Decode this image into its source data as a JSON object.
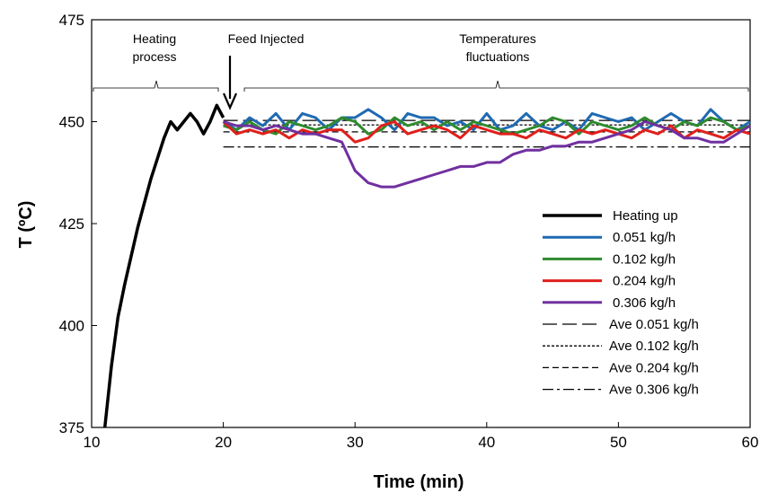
{
  "chart_data": {
    "type": "line",
    "xlabel": "Time (min)",
    "ylabel": "T (ºC)",
    "xlim": [
      10,
      60
    ],
    "ylim": [
      375,
      475
    ],
    "x_ticks": [
      "10",
      "20",
      "30",
      "40",
      "50",
      "60"
    ],
    "y_ticks": [
      "375",
      "400",
      "425",
      "450",
      "475"
    ],
    "grid": false,
    "legend_position": "bottom-right",
    "annotations": [
      {
        "text_lines": [
          "Heating",
          "process"
        ],
        "x_range": [
          10,
          20
        ]
      },
      {
        "text_lines": [
          "Feed Injected"
        ],
        "x": 20.5
      },
      {
        "text_lines": [
          "Temperatures",
          "fluctuations"
        ],
        "x_range": [
          21.5,
          60
        ]
      }
    ],
    "series": [
      {
        "name": "Heating up",
        "color": "#000000",
        "style": "solid",
        "width": 3.5,
        "x": [
          11,
          11.5,
          12,
          12.5,
          13,
          13.5,
          14,
          14.5,
          15,
          15.5,
          16,
          16.5,
          17,
          17.5,
          18,
          18.5,
          19,
          19.5,
          20
        ],
        "y": [
          375,
          390,
          402,
          410,
          417,
          424,
          430,
          436,
          441,
          446,
          450,
          448,
          450,
          452,
          450,
          447,
          450,
          454,
          451
        ]
      },
      {
        "name": "0.051 kg/h",
        "color": "#1f6ab2",
        "style": "solid",
        "width": 3,
        "x": [
          20,
          21,
          22,
          23,
          24,
          25,
          26,
          27,
          28,
          29,
          30,
          31,
          32,
          33,
          34,
          35,
          36,
          37,
          38,
          39,
          40,
          41,
          42,
          43,
          44,
          45,
          46,
          47,
          48,
          49,
          50,
          51,
          52,
          53,
          54,
          55,
          56,
          57,
          58,
          59,
          60
        ],
        "y": [
          450,
          448,
          451,
          449,
          452,
          448,
          452,
          451,
          448,
          451,
          451,
          453,
          451,
          448,
          452,
          451,
          451,
          449,
          450,
          448,
          452,
          448,
          449,
          452,
          449,
          448,
          450,
          448,
          452,
          451,
          450,
          451,
          448,
          450,
          452,
          450,
          449,
          453,
          450,
          448,
          450
        ]
      },
      {
        "name": "0.102 kg/h",
        "color": "#2e8b2e",
        "style": "solid",
        "width": 3,
        "x": [
          20,
          21,
          22,
          23,
          24,
          25,
          26,
          27,
          28,
          29,
          30,
          31,
          32,
          33,
          34,
          35,
          36,
          37,
          38,
          39,
          40,
          41,
          42,
          43,
          44,
          45,
          46,
          47,
          48,
          49,
          50,
          51,
          52,
          53,
          54,
          55,
          56,
          57,
          58,
          59,
          60
        ],
        "y": [
          449,
          448,
          450,
          448,
          447,
          450,
          449,
          448,
          449,
          451,
          450,
          447,
          448,
          451,
          449,
          450,
          448,
          450,
          448,
          450,
          449,
          448,
          447,
          448,
          449,
          451,
          450,
          447,
          450,
          449,
          448,
          449,
          451,
          449,
          448,
          450,
          449,
          451,
          450,
          448,
          449
        ]
      },
      {
        "name": "0.204 kg/h",
        "color": "#e0201b",
        "style": "solid",
        "width": 3,
        "x": [
          20,
          21,
          22,
          23,
          24,
          25,
          26,
          27,
          28,
          29,
          30,
          31,
          32,
          33,
          34,
          35,
          36,
          37,
          38,
          39,
          40,
          41,
          42,
          43,
          44,
          45,
          46,
          47,
          48,
          49,
          50,
          51,
          52,
          53,
          54,
          55,
          56,
          57,
          58,
          59,
          60
        ],
        "y": [
          450,
          447,
          448,
          447,
          448,
          446,
          448,
          447,
          448,
          448,
          445,
          446,
          449,
          450,
          447,
          448,
          449,
          448,
          446,
          449,
          448,
          447,
          447,
          446,
          448,
          447,
          446,
          448,
          447,
          448,
          447,
          446,
          448,
          447,
          449,
          446,
          448,
          447,
          446,
          448,
          447
        ]
      },
      {
        "name": "0.306 kg/h",
        "color": "#7030a0",
        "style": "solid",
        "width": 3,
        "x": [
          20,
          21,
          22,
          23,
          24,
          25,
          26,
          27,
          28,
          29,
          30,
          31,
          32,
          33,
          34,
          35,
          36,
          37,
          38,
          39,
          40,
          41,
          42,
          43,
          44,
          45,
          46,
          47,
          48,
          49,
          50,
          51,
          52,
          53,
          54,
          55,
          56,
          57,
          58,
          59,
          60
        ],
        "y": [
          450,
          449,
          449,
          448,
          449,
          448,
          447,
          447,
          446,
          445,
          438,
          435,
          434,
          434,
          435,
          436,
          437,
          438,
          439,
          439,
          440,
          440,
          442,
          443,
          443,
          444,
          444,
          445,
          445,
          446,
          447,
          448,
          450,
          449,
          448,
          446,
          446,
          445,
          445,
          447,
          449
        ]
      },
      {
        "name": "Ave 0.051 kg/h",
        "color": "#000000",
        "style": "longdash",
        "width": 1.3,
        "x": [
          20,
          60
        ],
        "y": [
          450.3,
          450.3
        ]
      },
      {
        "name": "Ave 0.102 kg/h",
        "color": "#000000",
        "style": "dotted",
        "width": 1.3,
        "x": [
          20,
          60
        ],
        "y": [
          449.2,
          449.2
        ]
      },
      {
        "name": "Ave 0.204 kg/h",
        "color": "#000000",
        "style": "dashed",
        "width": 1.3,
        "x": [
          20,
          60
        ],
        "y": [
          447.5,
          447.5
        ]
      },
      {
        "name": "Ave 0.306 kg/h",
        "color": "#000000",
        "style": "dashdot",
        "width": 1.3,
        "x": [
          20,
          60
        ],
        "y": [
          443.8,
          443.8
        ]
      }
    ]
  }
}
